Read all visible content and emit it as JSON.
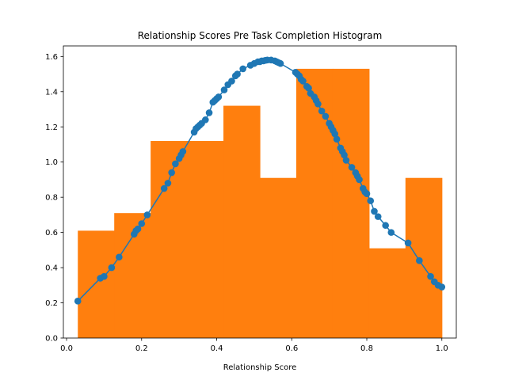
{
  "chart_data": {
    "type": "bar",
    "title": "Relationship Scores Pre Task Completion Histogram",
    "xlabel": "Relationship Score",
    "ylabel": "",
    "xlim": [
      -0.0085,
      1.0385
    ],
    "ylim": [
      0,
      1.66
    ],
    "xticks": [
      0.0,
      0.2,
      0.4,
      0.6,
      0.8,
      1.0
    ],
    "xtick_labels": [
      "0.0",
      "0.2",
      "0.4",
      "0.6",
      "0.8",
      "1.0"
    ],
    "yticks": [
      0.0,
      0.2,
      0.4,
      0.6,
      0.8,
      1.0,
      1.2,
      1.4,
      1.6
    ],
    "ytick_labels": [
      "0.0",
      "0.2",
      "0.4",
      "0.6",
      "0.8",
      "1.0",
      "1.2",
      "1.4",
      "1.6"
    ],
    "grid": false,
    "histogram": {
      "bin_edges": [
        0.03,
        0.127,
        0.224,
        0.321,
        0.418,
        0.515,
        0.612,
        0.709,
        0.806,
        0.903,
        1.0
      ],
      "values": [
        0.61,
        0.71,
        1.12,
        1.12,
        1.32,
        0.91,
        1.53,
        1.53,
        0.51,
        0.91
      ],
      "color": "#ff7f0e"
    },
    "density_curve": {
      "color": "#1f77b4",
      "x": [
        0.03,
        0.09,
        0.1,
        0.12,
        0.14,
        0.18,
        0.185,
        0.19,
        0.2,
        0.215,
        0.26,
        0.27,
        0.28,
        0.29,
        0.3,
        0.305,
        0.31,
        0.34,
        0.345,
        0.35,
        0.355,
        0.36,
        0.37,
        0.38,
        0.39,
        0.395,
        0.4,
        0.405,
        0.42,
        0.43,
        0.44,
        0.45,
        0.455,
        0.47,
        0.49,
        0.5,
        0.51,
        0.515,
        0.52,
        0.525,
        0.53,
        0.535,
        0.545,
        0.555,
        0.56,
        0.565,
        0.57,
        0.61,
        0.615,
        0.62,
        0.625,
        0.63,
        0.64,
        0.645,
        0.65,
        0.66,
        0.665,
        0.67,
        0.68,
        0.69,
        0.7,
        0.705,
        0.71,
        0.715,
        0.72,
        0.73,
        0.735,
        0.74,
        0.745,
        0.76,
        0.77,
        0.775,
        0.78,
        0.79,
        0.795,
        0.8,
        0.81,
        0.82,
        0.83,
        0.85,
        0.865,
        0.91,
        0.94,
        0.97,
        0.98,
        0.99,
        1.0
      ],
      "y": [
        0.21,
        0.34,
        0.35,
        0.4,
        0.46,
        0.59,
        0.61,
        0.62,
        0.65,
        0.7,
        0.85,
        0.88,
        0.94,
        0.99,
        1.02,
        1.04,
        1.06,
        1.17,
        1.19,
        1.2,
        1.21,
        1.22,
        1.24,
        1.28,
        1.34,
        1.35,
        1.36,
        1.37,
        1.41,
        1.44,
        1.46,
        1.49,
        1.5,
        1.53,
        1.55,
        1.56,
        1.57,
        1.57,
        1.575,
        1.575,
        1.578,
        1.58,
        1.58,
        1.575,
        1.57,
        1.565,
        1.56,
        1.51,
        1.5,
        1.49,
        1.47,
        1.46,
        1.43,
        1.42,
        1.39,
        1.37,
        1.35,
        1.33,
        1.29,
        1.26,
        1.22,
        1.2,
        1.18,
        1.16,
        1.13,
        1.08,
        1.06,
        1.04,
        1.01,
        0.97,
        0.94,
        0.92,
        0.9,
        0.85,
        0.83,
        0.82,
        0.78,
        0.72,
        0.69,
        0.64,
        0.6,
        0.54,
        0.44,
        0.35,
        0.32,
        0.3,
        0.29
      ]
    }
  }
}
